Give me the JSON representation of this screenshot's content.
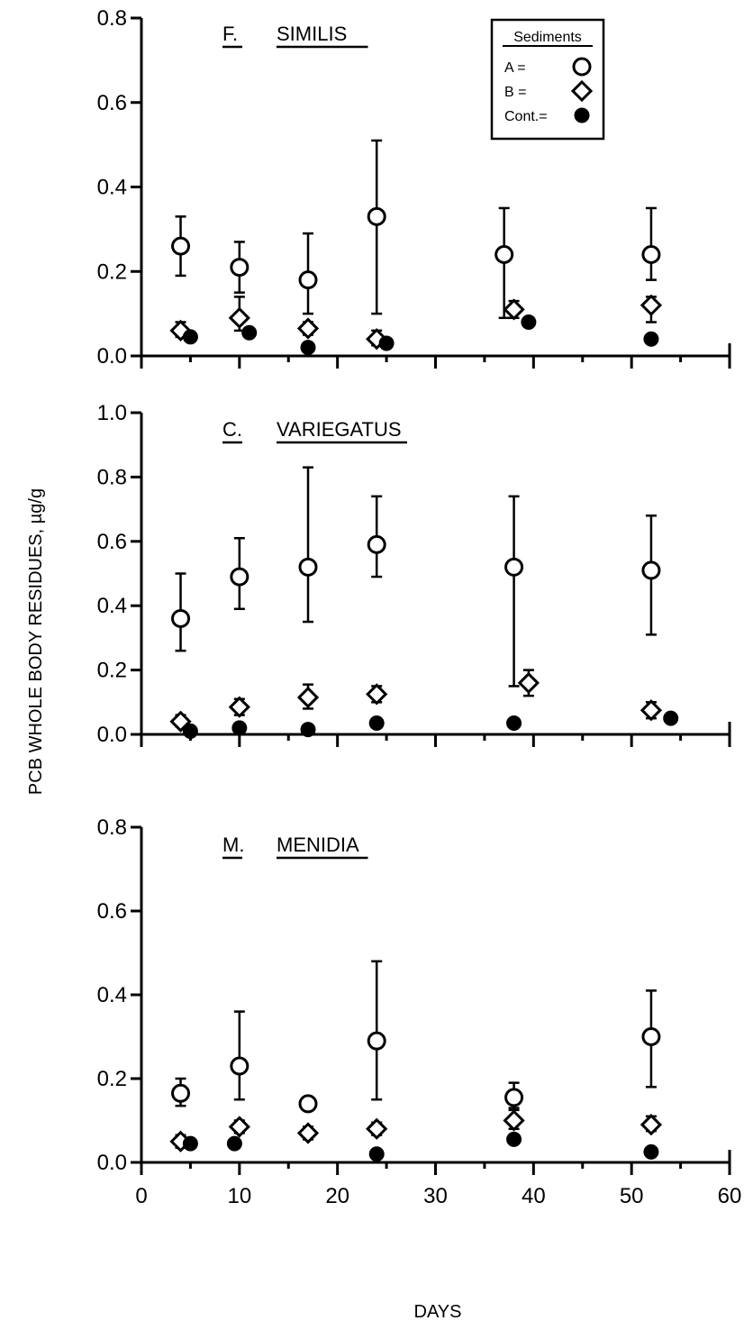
{
  "chart_data": {
    "type": "scatter",
    "xlabel": "DAYS",
    "ylabel": "PCB WHOLE BODY RESIDUES, µg/g",
    "xlim": [
      0,
      60
    ],
    "x_ticks": [
      0,
      10,
      20,
      30,
      40,
      50,
      60
    ],
    "x_tick_labels": [
      "0",
      "10",
      "20",
      "30",
      "40",
      "50",
      "60"
    ],
    "grid": false,
    "legend": {
      "title": "Sediments",
      "placement": "top-right of first panel",
      "entries": [
        {
          "label": "A =",
          "marker": "open-circle"
        },
        {
          "label": "B =",
          "marker": "open-diamond"
        },
        {
          "label": "Cont.=",
          "marker": "filled-circle"
        }
      ]
    },
    "panels": [
      {
        "title_prefix": "F.",
        "title_word": "SIMILIS",
        "ylim": [
          0,
          0.8
        ],
        "y_ticks": [
          "0.0",
          "0.2",
          "0.4",
          "0.6",
          "0.8"
        ],
        "series": [
          {
            "marker": "open-circle",
            "points": [
              {
                "x": 4,
                "y": 0.26,
                "lo": 0.19,
                "hi": 0.33
              },
              {
                "x": 10,
                "y": 0.21,
                "lo": 0.15,
                "hi": 0.27
              },
              {
                "x": 17,
                "y": 0.18,
                "lo": 0.1,
                "hi": 0.29
              },
              {
                "x": 24,
                "y": 0.33,
                "lo": 0.1,
                "hi": 0.51
              },
              {
                "x": 37,
                "y": 0.24,
                "lo": 0.09,
                "hi": 0.35
              },
              {
                "x": 52,
                "y": 0.24,
                "lo": 0.18,
                "hi": 0.35
              }
            ]
          },
          {
            "marker": "open-diamond",
            "points": [
              {
                "x": 4,
                "y": 0.06,
                "lo": 0.045,
                "hi": 0.08
              },
              {
                "x": 10,
                "y": 0.09,
                "lo": 0.06,
                "hi": 0.14
              },
              {
                "x": 17,
                "y": 0.065,
                "lo": 0.05,
                "hi": 0.08
              },
              {
                "x": 24,
                "y": 0.04,
                "lo": 0.025,
                "hi": 0.06
              },
              {
                "x": 38,
                "y": 0.11,
                "lo": 0.09,
                "hi": 0.13
              },
              {
                "x": 52,
                "y": 0.12,
                "lo": 0.08,
                "hi": 0.14
              }
            ]
          },
          {
            "marker": "filled-circle",
            "points": [
              {
                "x": 5,
                "y": 0.045
              },
              {
                "x": 11,
                "y": 0.055
              },
              {
                "x": 17,
                "y": 0.02
              },
              {
                "x": 25,
                "y": 0.03
              },
              {
                "x": 39.5,
                "y": 0.08
              },
              {
                "x": 52,
                "y": 0.04
              }
            ]
          }
        ]
      },
      {
        "title_prefix": "C.",
        "title_word": "VARIEGATUS",
        "ylim": [
          0,
          1.0
        ],
        "y_ticks": [
          "0.0",
          "0.2",
          "0.4",
          "0.6",
          "0.8",
          "1.0"
        ],
        "series": [
          {
            "marker": "open-circle",
            "points": [
              {
                "x": 4,
                "y": 0.36,
                "lo": 0.26,
                "hi": 0.5
              },
              {
                "x": 10,
                "y": 0.49,
                "lo": 0.39,
                "hi": 0.61
              },
              {
                "x": 17,
                "y": 0.52,
                "lo": 0.35,
                "hi": 0.83
              },
              {
                "x": 24,
                "y": 0.59,
                "lo": 0.49,
                "hi": 0.74
              },
              {
                "x": 38,
                "y": 0.52,
                "lo": 0.15,
                "hi": 0.74
              },
              {
                "x": 52,
                "y": 0.51,
                "lo": 0.31,
                "hi": 0.68
              }
            ]
          },
          {
            "marker": "open-diamond",
            "points": [
              {
                "x": 4,
                "y": 0.04,
                "lo": 0.025,
                "hi": 0.06
              },
              {
                "x": 10,
                "y": 0.085,
                "lo": 0.06,
                "hi": 0.11
              },
              {
                "x": 17,
                "y": 0.115,
                "lo": 0.08,
                "hi": 0.155
              },
              {
                "x": 24,
                "y": 0.125,
                "lo": 0.1,
                "hi": 0.15
              },
              {
                "x": 39.5,
                "y": 0.16,
                "lo": 0.12,
                "hi": 0.2
              },
              {
                "x": 52,
                "y": 0.075,
                "lo": 0.05,
                "hi": 0.1
              }
            ]
          },
          {
            "marker": "filled-circle",
            "points": [
              {
                "x": 5,
                "y": 0.01
              },
              {
                "x": 10,
                "y": 0.02
              },
              {
                "x": 17,
                "y": 0.015
              },
              {
                "x": 24,
                "y": 0.035
              },
              {
                "x": 38,
                "y": 0.035
              },
              {
                "x": 54,
                "y": 0.05
              }
            ]
          }
        ]
      },
      {
        "title_prefix": "M.",
        "title_word": "MENIDIA",
        "ylim": [
          0,
          0.8
        ],
        "y_ticks": [
          "0.0",
          "0.2",
          "0.4",
          "0.6",
          "0.8"
        ],
        "series": [
          {
            "marker": "open-circle",
            "points": [
              {
                "x": 4,
                "y": 0.165,
                "lo": 0.135,
                "hi": 0.2
              },
              {
                "x": 10,
                "y": 0.23,
                "lo": 0.15,
                "hi": 0.36
              },
              {
                "x": 17,
                "y": 0.14,
                "lo": 0.125,
                "hi": 0.155
              },
              {
                "x": 24,
                "y": 0.29,
                "lo": 0.15,
                "hi": 0.48
              },
              {
                "x": 38,
                "y": 0.155,
                "lo": 0.13,
                "hi": 0.19
              },
              {
                "x": 52,
                "y": 0.3,
                "lo": 0.18,
                "hi": 0.41
              }
            ]
          },
          {
            "marker": "open-diamond",
            "points": [
              {
                "x": 4,
                "y": 0.05,
                "lo": 0.035,
                "hi": 0.065
              },
              {
                "x": 10,
                "y": 0.085,
                "lo": 0.07,
                "hi": 0.1
              },
              {
                "x": 17,
                "y": 0.07,
                "lo": 0.055,
                "hi": 0.085
              },
              {
                "x": 24,
                "y": 0.08,
                "lo": 0.065,
                "hi": 0.095
              },
              {
                "x": 38,
                "y": 0.1,
                "lo": 0.08,
                "hi": 0.125
              },
              {
                "x": 52,
                "y": 0.09,
                "lo": 0.075,
                "hi": 0.11
              }
            ]
          },
          {
            "marker": "filled-circle",
            "points": [
              {
                "x": 5,
                "y": 0.045
              },
              {
                "x": 9.5,
                "y": 0.045
              },
              {
                "x": 24,
                "y": 0.02
              },
              {
                "x": 38,
                "y": 0.055
              },
              {
                "x": 52,
                "y": 0.025
              }
            ]
          }
        ]
      }
    ]
  }
}
